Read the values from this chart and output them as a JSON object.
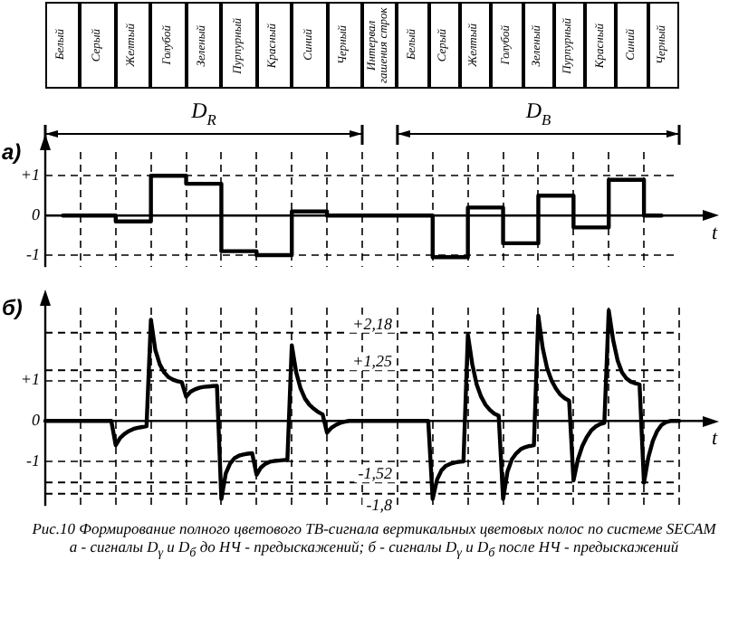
{
  "chart_data": [
    {
      "type": "other",
      "annotations": [
        "Белый",
        "Серый",
        "Желтый",
        "Голубой",
        "Зеленый",
        "Пурпурный",
        "Красный",
        "Синий",
        "Черный",
        "Интервал гашения строк",
        "Белый",
        "Серый",
        "Желтый",
        "Голубой",
        "Зеленый",
        "Пурпурный",
        "Красный",
        "Синий",
        "Черный"
      ]
    },
    {
      "type": "step",
      "title": "а)",
      "xlabel": "t",
      "color": "#000000",
      "marker": "none",
      "line_style": "solid",
      "grid": true,
      "tick_labels": "y",
      "categories": [
        null,
        null,
        null,
        null,
        null,
        null,
        null,
        null,
        null,
        null,
        null,
        null,
        null,
        null,
        null,
        null,
        null,
        null
      ],
      "values": [
        0,
        0,
        -0.15,
        1,
        0.8,
        -0.9,
        -1,
        0.1,
        0,
        0,
        0,
        -1.05,
        0.2,
        -0.7,
        0.5,
        -0.3,
        0.9,
        0
      ],
      "ylim": [
        -1.3,
        1.6
      ],
      "yticks": [
        {
          "value": -1,
          "label": "-1"
        },
        {
          "value": 0,
          "label": "0"
        },
        {
          "value": 1,
          "label": "+1"
        }
      ],
      "annotations": [
        "D$_{R}$",
        "D$_{B}$"
      ]
    },
    {
      "type": "line",
      "title": "б)",
      "xlabel": "t",
      "color": "#000000",
      "marker": "none",
      "line_style": "solid",
      "grid": true,
      "tick_labels": "y",
      "categories": [
        null,
        null,
        null,
        null,
        null,
        null,
        null,
        null,
        null,
        null,
        null,
        null,
        null,
        null,
        null,
        null,
        null,
        null,
        null,
        null,
        null,
        null,
        null,
        null,
        null,
        null,
        null,
        null,
        null,
        null,
        null,
        null,
        null,
        null,
        null,
        null,
        null,
        null,
        null,
        null,
        null,
        null,
        null,
        null,
        null,
        null,
        null,
        null,
        null,
        null,
        null,
        null,
        null,
        null,
        null,
        null,
        null,
        null,
        null,
        null,
        null,
        null,
        null,
        null,
        null,
        null,
        null,
        null,
        null,
        null,
        null,
        null,
        null,
        null,
        null,
        null,
        null,
        null,
        null,
        null,
        null,
        null,
        null,
        null,
        null,
        null,
        null,
        null,
        null,
        null,
        null,
        null,
        null,
        null,
        null,
        null,
        null,
        null,
        null,
        null,
        null,
        null,
        null,
        null,
        null,
        null,
        null,
        null,
        null,
        null,
        null,
        null,
        null,
        null,
        null,
        null,
        null,
        null,
        null,
        null,
        null,
        null,
        null,
        null,
        null,
        null,
        null,
        null,
        null,
        null,
        null,
        null,
        null,
        null,
        null,
        null,
        null,
        null,
        null,
        null,
        null,
        null,
        null,
        null,
        null
      ],
      "values": [
        0,
        0,
        0,
        0,
        0,
        0,
        0,
        0,
        0,
        0,
        0,
        0,
        0,
        0,
        0,
        0,
        -0.6,
        -0.42,
        -0.32,
        -0.25,
        -0.2,
        -0.17,
        -0.15,
        -0.13,
        2.5,
        1.75,
        1.4,
        1.2,
        1.08,
        1.02,
        0.98,
        0.96,
        0.6,
        0.72,
        0.78,
        0.82,
        0.84,
        0.85,
        0.86,
        0.87,
        -1.93,
        -1.3,
        -1.05,
        -0.92,
        -0.86,
        -0.83,
        -0.81,
        -0.8,
        -1.33,
        -1.15,
        -1.06,
        -1.01,
        -0.99,
        -0.98,
        -0.97,
        -0.96,
        1.87,
        1.2,
        0.8,
        0.55,
        0.4,
        0.3,
        0.22,
        0.16,
        -0.29,
        -0.17,
        -0.1,
        -0.05,
        -0.02,
        0,
        0,
        0,
        0,
        0,
        0,
        0,
        0,
        0,
        0,
        0,
        0,
        0,
        0,
        0,
        0,
        0,
        0,
        0,
        -1.93,
        -1.45,
        -1.22,
        -1.11,
        -1.06,
        -1.03,
        -1.01,
        -1.0,
        2.13,
        1.4,
        0.9,
        0.6,
        0.4,
        0.27,
        0.18,
        0.13,
        -1.93,
        -1.25,
        -0.95,
        -0.8,
        -0.7,
        -0.65,
        -0.62,
        -0.6,
        2.6,
        1.8,
        1.3,
        1.0,
        0.8,
        0.65,
        0.56,
        0.5,
        -1.47,
        -0.95,
        -0.62,
        -0.4,
        -0.24,
        -0.14,
        -0.08,
        -0.05,
        2.73,
        2.0,
        1.5,
        1.2,
        1.05,
        0.97,
        0.93,
        0.9,
        -1.53,
        -0.9,
        -0.5,
        -0.25,
        -0.1,
        -0.03,
        0,
        0,
        0
      ],
      "ylim": [
        -2.1,
        2.8
      ],
      "yticks": [
        {
          "value": -1,
          "label": "-1"
        },
        {
          "value": 0,
          "label": "0"
        },
        {
          "value": 1,
          "label": "+1"
        }
      ],
      "ref_lines": [
        {
          "axis": "y",
          "value": 2.18,
          "label": "+2,18",
          "line_style": "dashed"
        },
        {
          "axis": "y",
          "value": 1.25,
          "label": "+1,25",
          "line_style": "dashed"
        },
        {
          "axis": "y",
          "value": -1.52,
          "label": "-1,52",
          "line_style": "dashed"
        },
        {
          "axis": "y",
          "value": -1.8,
          "label": "-1,8",
          "line_style": "dashed"
        }
      ]
    },
    {
      "type": "other",
      "annotations": [
        "Рис.10 Формирование полного цветового ТВ-сигнала вертикальных цветовых полос по системе SECAM",
        "а - сигналы D$_{γ}$ и D$_{б}$ до НЧ - предыскажений; б - сигналы D$_{γ}$ и D$_{б}$ после НЧ - предыскажений"
      ]
    }
  ]
}
